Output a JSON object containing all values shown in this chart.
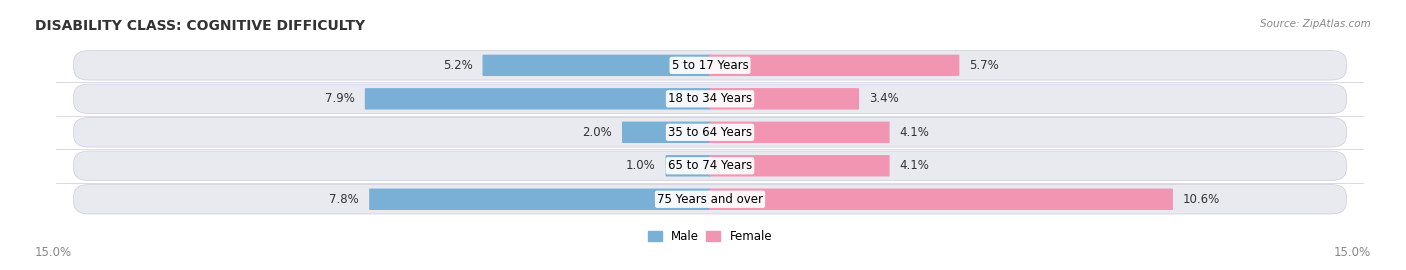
{
  "title": "DISABILITY CLASS: COGNITIVE DIFFICULTY",
  "source": "Source: ZipAtlas.com",
  "categories": [
    "5 to 17 Years",
    "18 to 34 Years",
    "35 to 64 Years",
    "65 to 74 Years",
    "75 Years and over"
  ],
  "male_values": [
    5.2,
    7.9,
    2.0,
    1.0,
    7.8
  ],
  "female_values": [
    5.7,
    3.4,
    4.1,
    4.1,
    10.6
  ],
  "max_val": 15.0,
  "male_color": "#7aafd6",
  "female_color": "#f195b2",
  "row_bg_color": "#e8eaf0",
  "title_fontsize": 10,
  "label_fontsize": 8.5,
  "tick_fontsize": 8.5,
  "source_fontsize": 7.5
}
